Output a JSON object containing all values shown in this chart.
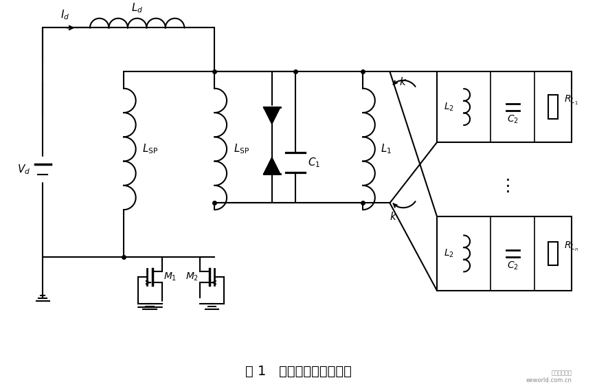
{
  "bg_color": "#ffffff",
  "line_color": "#000000",
  "fig_caption": "图 1   非接触通用供电平台",
  "watermark": "电子工程世界\neeworld.com.cn"
}
